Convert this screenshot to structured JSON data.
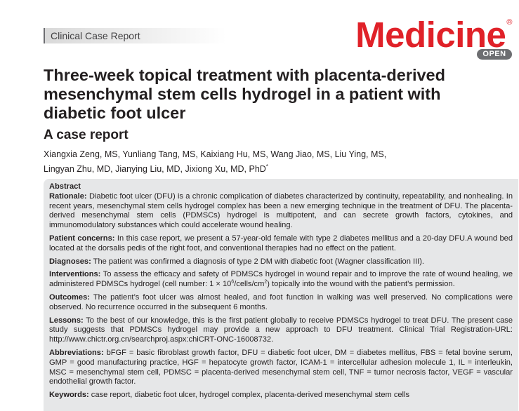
{
  "header": {
    "article_type": "Clinical Case Report",
    "journal": "Medicine",
    "trademark": "®",
    "open_badge": "OPEN"
  },
  "article": {
    "title": "Three-week topical treatment with placenta-derived mesenchymal stem cells hydrogel in a patient with diabetic foot ulcer",
    "subtitle": "A case report",
    "authors_line1": "Xiangxia Zeng, MS, Yunliang Tang, MS, Kaixiang Hu, MS, Wang Jiao, MS, Liu Ying, MS,",
    "authors_line2": "Lingyan Zhu, MD, Jianying Liu, MD, Jixiong Xu, MD, PhD",
    "corresponding_mark": "*"
  },
  "abstract": {
    "heading": "Abstract",
    "rationale_label": "Rationale:",
    "rationale_text": " Diabetic foot ulcer (DFU) is a chronic complication of diabetes characterized by continuity, repeatability, and nonhealing. In recent years, mesenchymal stem cells hydrogel complex has been a new emerging technique in the treatment of DFU. The placenta-derived mesenchymal stem cells (PDMSCs) hydrogel is multipotent, and can secrete growth factors, cytokines, and immunomodulatory substances which could accelerate wound healing.",
    "concerns_label": "Patient concerns:",
    "concerns_text": " In this case report, we present a 57-year-old female with type 2 diabetes mellitus and a 20-day DFU.A wound bed located at the dorsalis pedis of the right foot, and conventional therapies had no effect on the patient.",
    "diagnoses_label": "Diagnoses:",
    "diagnoses_text": " The patient was confirmed a diagnosis of type 2 DM with diabetic foot (Wagner classification III).",
    "interventions_label": "Interventions:",
    "interventions_text_a": " To assess the efficacy and safety of PDMSCs hydrogel in wound repair and to improve the rate of wound healing, we administered PDMSCs hydrogel (cell number: 1 × 10",
    "interventions_exp": "6",
    "interventions_text_b": "/cells/cm",
    "interventions_exp2": "2",
    "interventions_text_c": ") topically into the wound with the patient’s permission.",
    "outcomes_label": "Outcomes:",
    "outcomes_text": " The patient’s foot ulcer was almost healed, and foot function in walking was well preserved. No complications were observed. No recurrence occurred in the subsequent 6 months.",
    "lessons_label": "Lessons:",
    "lessons_text": " To the best of our knowledge, this is the first patient globally to receive PDMSCs hydrogel to treat DFU. The present case study suggests that PDMSCs hydrogel may provide a new approach to DFU treatment. Clinical Trial Registration-URL: http://www.chictr.org.cn/searchproj.aspx:chiCRT-ONC-16008732.",
    "abbreviations_label": "Abbreviations:",
    "abbreviations_text": " bFGF = basic fibroblast growth factor, DFU = diabetic foot ulcer, DM = diabetes mellitus, FBS = fetal bovine serum, GMP = good manufacturing practice, HGF = hepatocyte growth factor, ICAM-1 = intercellular adhesion molecule 1, IL = interleukin, MSC = mesenchymal stem cell, PDMSC = placenta-derived mesenchymal stem cell, TNF = tumor necrosis factor, VEGF = vascular endothelial growth factor.",
    "keywords_label": "Keywords:",
    "keywords_text": " case report, diabetic foot ulcer, hydrogel complex, placenta-derived mesenchymal stem cells"
  }
}
